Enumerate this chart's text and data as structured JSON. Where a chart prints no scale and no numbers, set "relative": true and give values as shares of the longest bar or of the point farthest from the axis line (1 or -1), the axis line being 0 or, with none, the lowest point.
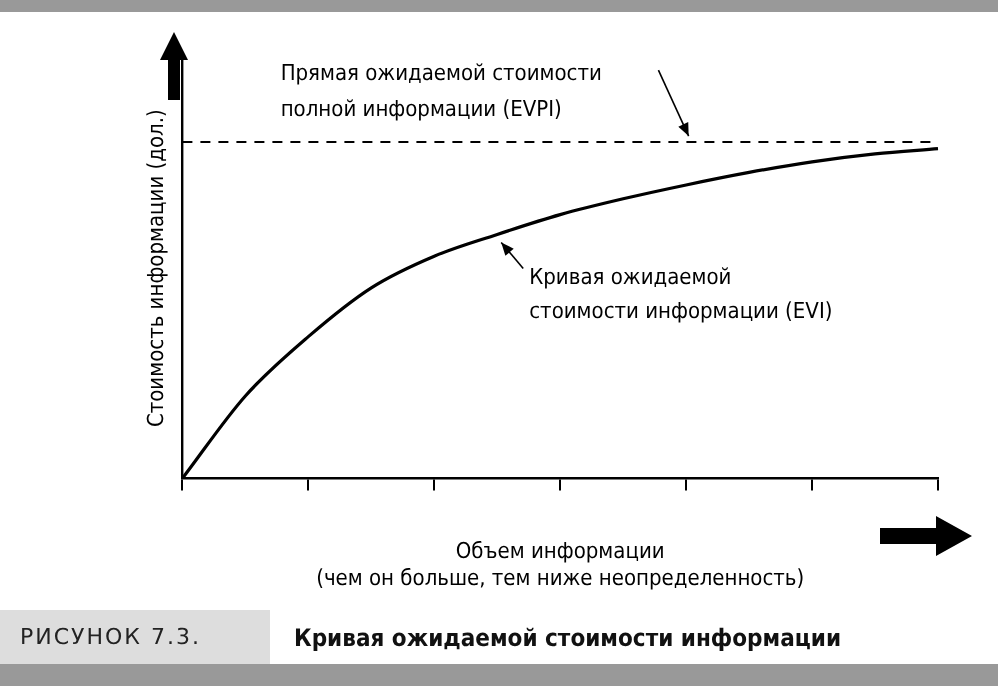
{
  "chart_data": {
    "type": "line",
    "title": "Кривая ожидаемой стоимости информации",
    "annotations": [
      "РИСУНОК 7.3."
    ],
    "xlabel": "Объем информации\n(чем он больше, тем ниже неопределенность)",
    "ylabel": "Стоимость информации (дол.)",
    "relative": true,
    "categories": [
      null,
      null,
      null,
      null,
      null,
      null,
      null,
      null,
      null,
      null,
      null,
      null,
      null
    ],
    "series": [
      {
        "name": "Кривая ожидаемой\nстоимости информации (EVI)",
        "color": "#000000",
        "values": [
          0,
          0.25,
          0.43,
          0.578,
          0.674,
          0.74,
          0.8,
          0.848,
          0.89,
          0.928,
          0.96,
          0.984,
          1
        ]
      }
    ],
    "ref_lines": [
      {
        "axis": "y",
        "value": 1.02,
        "label": "Прямая ожидаемой стоимости\nполной информации (EVPI)",
        "line_style": "dashed",
        "color": "#000000"
      }
    ],
    "marker": "none",
    "line_style": "solid",
    "grid": false
  }
}
